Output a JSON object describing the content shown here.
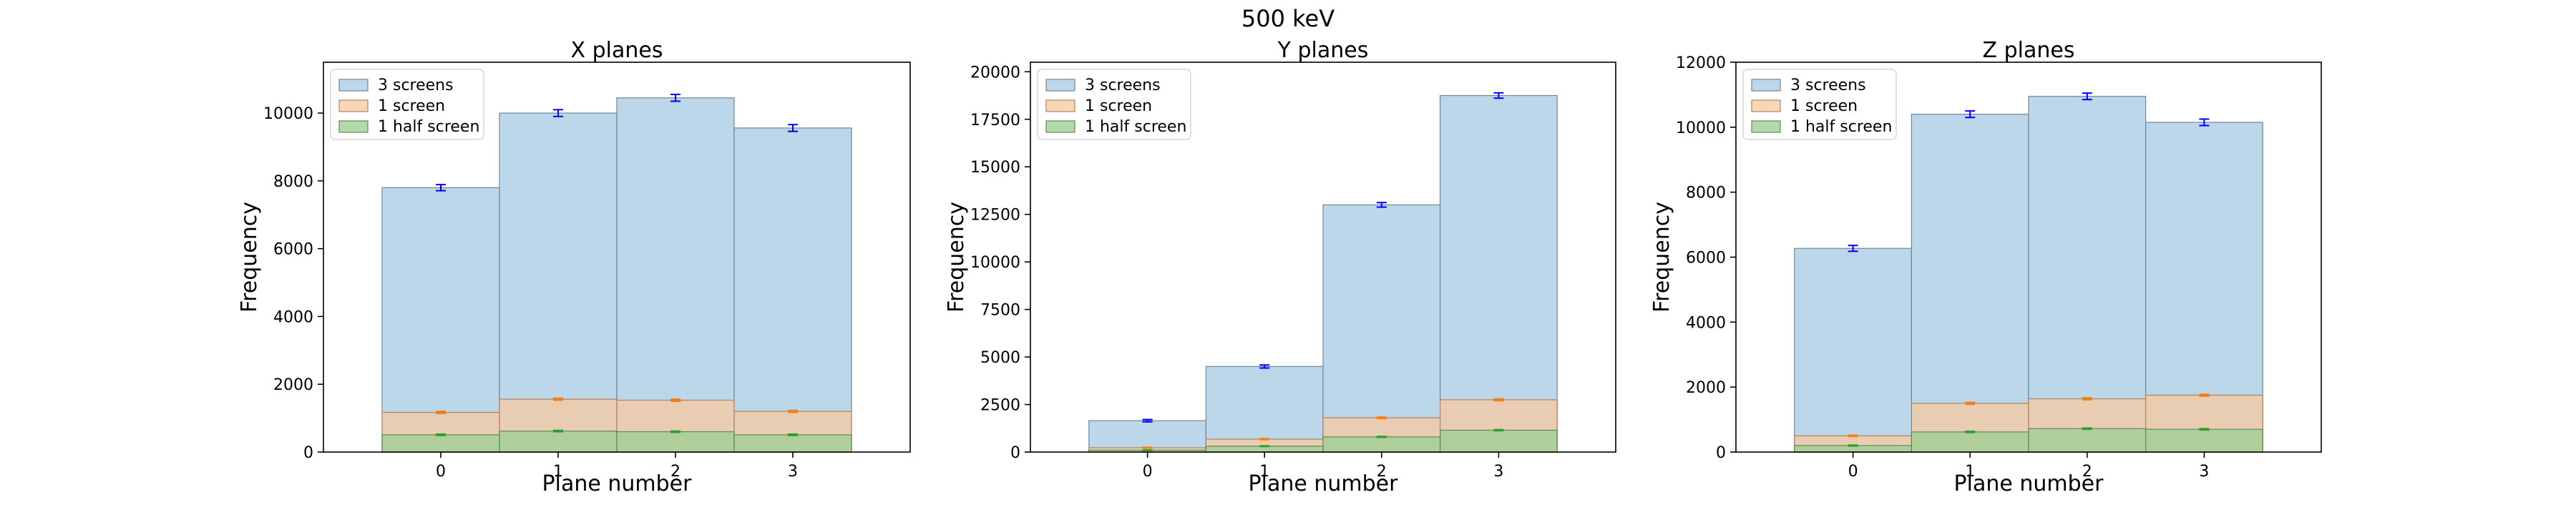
{
  "title": "500 keV",
  "chart_data": [
    {
      "type": "bar",
      "title": "X planes",
      "xlabel": "Plane number",
      "ylabel": "Frequency",
      "categories": [
        "0",
        "1",
        "2",
        "3"
      ],
      "ylim": [
        0,
        11500
      ],
      "yticks": [
        0,
        2000,
        4000,
        6000,
        8000,
        10000
      ],
      "ytick_labels": [
        "0",
        "2000",
        "4000",
        "6000",
        "8000",
        "10000"
      ],
      "legend_position": "top-left",
      "series": [
        {
          "name": "3 screens",
          "values": [
            7800,
            10000,
            10450,
            9560
          ],
          "errors": [
            90,
            100,
            100,
            100
          ],
          "fill": "#a9cbe4",
          "edge": "#6f8797",
          "err_color": "#0000ff"
        },
        {
          "name": "1 screen",
          "values": [
            1170,
            1560,
            1530,
            1200
          ],
          "errors": [
            30,
            30,
            30,
            30
          ],
          "fill": "#f6cba3",
          "edge": "#b08460",
          "err_color": "#ff7f0e"
        },
        {
          "name": "1 half screen",
          "values": [
            510,
            620,
            600,
            510
          ],
          "errors": [
            20,
            20,
            20,
            20
          ],
          "fill": "#9fcf93",
          "edge": "#5f8a57",
          "err_color": "#2ca02c"
        }
      ]
    },
    {
      "type": "bar",
      "title": "Y planes",
      "xlabel": "Plane number",
      "ylabel": "Frequency",
      "categories": [
        "0",
        "1",
        "2",
        "3"
      ],
      "ylim": [
        0,
        20500
      ],
      "yticks": [
        0,
        2500,
        5000,
        7500,
        10000,
        12500,
        15000,
        17500,
        20000
      ],
      "ytick_labels": [
        "0",
        "2500",
        "5000",
        "7500",
        "10000",
        "12500",
        "15000",
        "17500",
        "20000"
      ],
      "legend_position": "top-left",
      "series": [
        {
          "name": "3 screens",
          "values": [
            1650,
            4500,
            13000,
            18750
          ],
          "errors": [
            60,
            80,
            120,
            140
          ],
          "fill": "#a9cbe4",
          "edge": "#6f8797",
          "err_color": "#0000ff"
        },
        {
          "name": "1 screen",
          "values": [
            230,
            680,
            1800,
            2750
          ],
          "errors": [
            20,
            30,
            40,
            50
          ],
          "fill": "#f6cba3",
          "edge": "#b08460",
          "err_color": "#ff7f0e"
        },
        {
          "name": "1 half screen",
          "values": [
            100,
            310,
            800,
            1150
          ],
          "errors": [
            15,
            20,
            25,
            30
          ],
          "fill": "#9fcf93",
          "edge": "#5f8a57",
          "err_color": "#2ca02c"
        }
      ]
    },
    {
      "type": "bar",
      "title": "Z planes",
      "xlabel": "Plane number",
      "ylabel": "Frequency",
      "categories": [
        "0",
        "1",
        "2",
        "3"
      ],
      "ylim": [
        0,
        12000
      ],
      "yticks": [
        0,
        2000,
        4000,
        6000,
        8000,
        10000,
        12000
      ],
      "ytick_labels": [
        "0",
        "2000",
        "4000",
        "6000",
        "8000",
        "10000",
        "12000"
      ],
      "legend_position": "top-left",
      "series": [
        {
          "name": "3 screens",
          "values": [
            6270,
            10400,
            10950,
            10150
          ],
          "errors": [
            90,
            100,
            100,
            100
          ],
          "fill": "#a9cbe4",
          "edge": "#6f8797",
          "err_color": "#0000ff"
        },
        {
          "name": "1 screen",
          "values": [
            500,
            1500,
            1640,
            1750
          ],
          "errors": [
            20,
            30,
            30,
            30
          ],
          "fill": "#f6cba3",
          "edge": "#b08460",
          "err_color": "#ff7f0e"
        },
        {
          "name": "1 half screen",
          "values": [
            200,
            620,
            720,
            700
          ],
          "errors": [
            15,
            20,
            20,
            20
          ],
          "fill": "#9fcf93",
          "edge": "#5f8a57",
          "err_color": "#2ca02c"
        }
      ]
    }
  ]
}
